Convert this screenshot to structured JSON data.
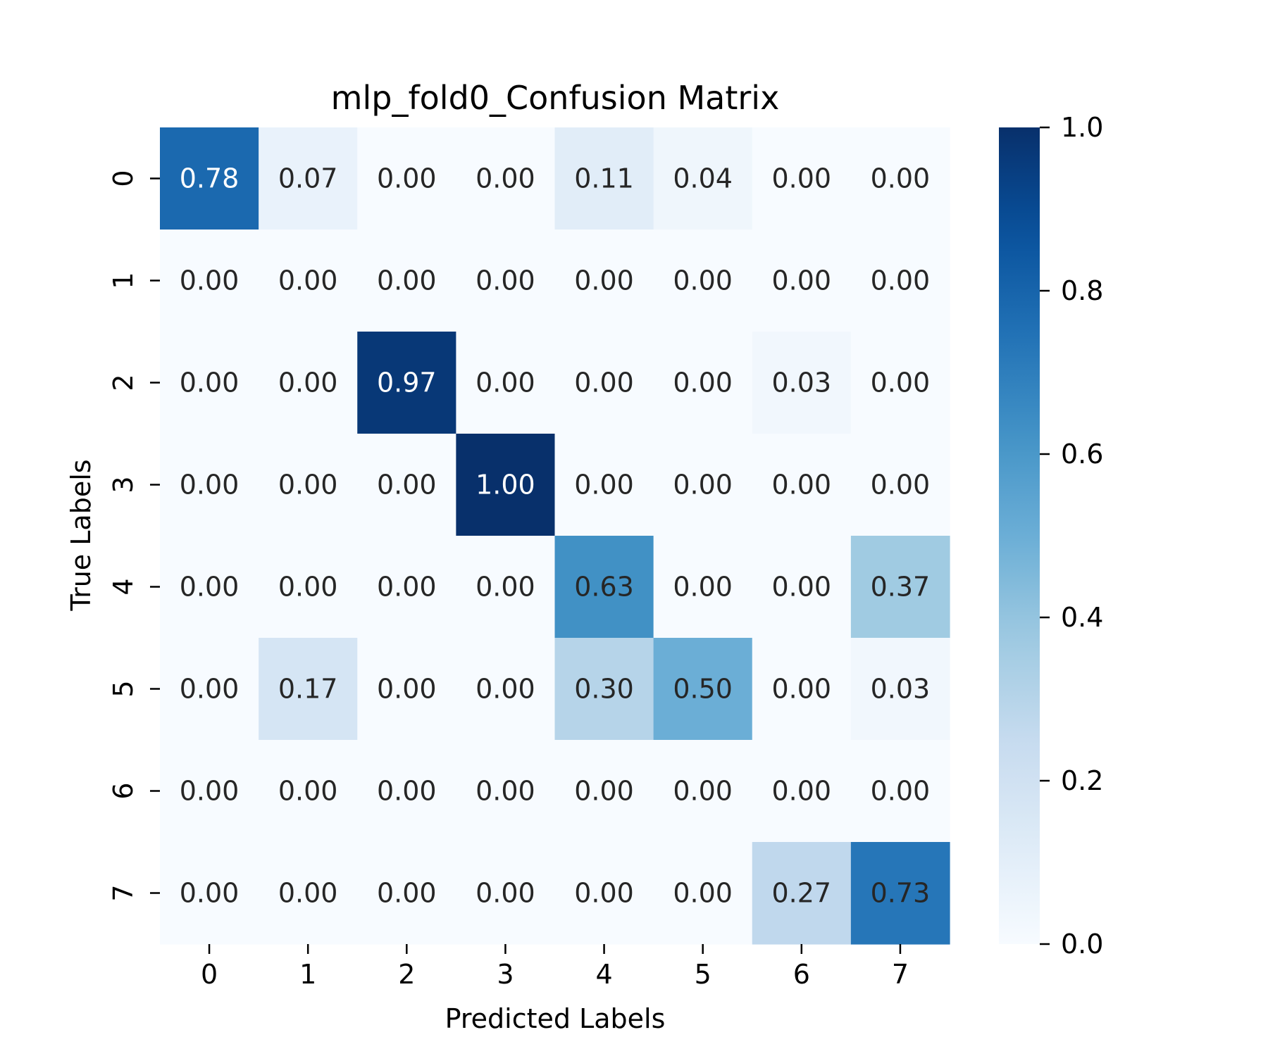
{
  "chart_data": {
    "type": "heatmap",
    "title": "mlp_fold0_Confusion Matrix",
    "xlabel": "Predicted Labels",
    "ylabel": "True Labels",
    "x_categories": [
      "0",
      "1",
      "2",
      "3",
      "4",
      "5",
      "6",
      "7"
    ],
    "y_categories": [
      "0",
      "1",
      "2",
      "3",
      "4",
      "5",
      "6",
      "7"
    ],
    "values": [
      [
        0.78,
        0.07,
        0.0,
        0.0,
        0.11,
        0.04,
        0.0,
        0.0
      ],
      [
        0.0,
        0.0,
        0.0,
        0.0,
        0.0,
        0.0,
        0.0,
        0.0
      ],
      [
        0.0,
        0.0,
        0.97,
        0.0,
        0.0,
        0.0,
        0.03,
        0.0
      ],
      [
        0.0,
        0.0,
        0.0,
        1.0,
        0.0,
        0.0,
        0.0,
        0.0
      ],
      [
        0.0,
        0.0,
        0.0,
        0.0,
        0.63,
        0.0,
        0.0,
        0.37
      ],
      [
        0.0,
        0.17,
        0.0,
        0.0,
        0.3,
        0.5,
        0.0,
        0.03
      ],
      [
        0.0,
        0.0,
        0.0,
        0.0,
        0.0,
        0.0,
        0.0,
        0.0
      ],
      [
        0.0,
        0.0,
        0.0,
        0.0,
        0.0,
        0.0,
        0.27,
        0.73
      ]
    ],
    "value_format": "0.00",
    "colormap": "Blues",
    "vmin": 0.0,
    "vmax": 1.0,
    "colorbar": {
      "ticks": [
        0.0,
        0.2,
        0.4,
        0.6,
        0.8,
        1.0
      ],
      "tick_labels": [
        "0.0",
        "0.2",
        "0.4",
        "0.6",
        "0.8",
        "1.0"
      ],
      "placement": "right"
    },
    "grid": false
  }
}
